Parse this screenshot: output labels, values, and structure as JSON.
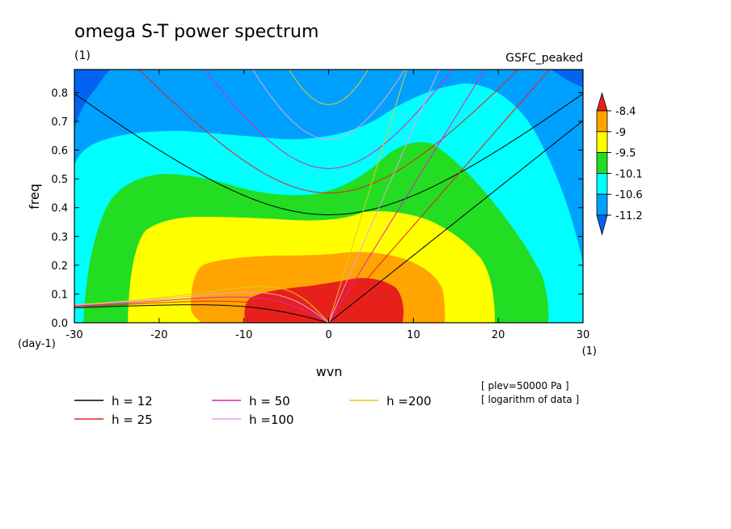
{
  "chart_data": {
    "type": "heatmap",
    "title": "omega S-T power spectrum",
    "subtitle_left": "(1)",
    "subtitle_right": "GSFC_peaked",
    "xlabel": "wvn",
    "ylabel": "freq",
    "x_units": "(1)",
    "y_units": "(day-1)",
    "xlim": [
      -30,
      30
    ],
    "ylim": [
      0,
      0.88
    ],
    "x_ticks": [
      "-30",
      "-20",
      "-10",
      "0",
      "10",
      "20",
      "30"
    ],
    "x_tick_values": [
      -30,
      -20,
      -10,
      0,
      10,
      20,
      30
    ],
    "y_ticks": [
      "0.0",
      "0.1",
      "0.2",
      "0.3",
      "0.4",
      "0.5",
      "0.6",
      "0.7",
      "0.8"
    ],
    "y_tick_values": [
      0,
      0.1,
      0.2,
      0.3,
      0.4,
      0.5,
      0.6,
      0.7,
      0.8
    ],
    "colorbar": {
      "labels": [
        "-8.4",
        "-9",
        "-9.5",
        "-10.1",
        "-10.6",
        "-11.2"
      ],
      "colors": [
        "#e8201c",
        "#ffa400",
        "#ffff00",
        "#22dd22",
        "#00ffff",
        "#00a0ff",
        "#0064f0"
      ]
    },
    "contour_fill_levels": [
      {
        "level": "-11.2",
        "color": "#00a0ff"
      },
      {
        "level": "-10.6",
        "color": "#00ffff"
      },
      {
        "level": "-10.1",
        "color": "#22dd22"
      },
      {
        "level": "-9.5",
        "color": "#ffff00"
      },
      {
        "level": "-9",
        "color": "#ffa400"
      },
      {
        "level": "-8.4",
        "color": "#e8201c"
      }
    ],
    "dispersion_curves": [
      {
        "label": "h = 12",
        "h": 12,
        "color": "#000000"
      },
      {
        "label": "h = 25",
        "h": 25,
        "color": "#e8201c"
      },
      {
        "label": "h = 50",
        "h": 50,
        "color": "#e020c0"
      },
      {
        "label": "h =100",
        "h": 100,
        "color": "#e8a0e0"
      },
      {
        "label": "h =200",
        "h": 200,
        "color": "#e8c820"
      }
    ],
    "annotations": [
      "[ plev=50000 Pa ]",
      "[ logarithm of data ]"
    ]
  }
}
